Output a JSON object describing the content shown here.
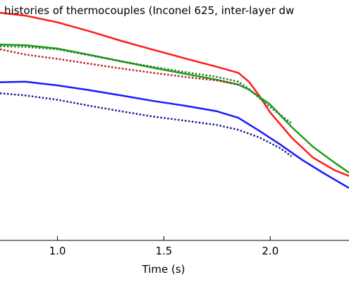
{
  "chart_data": {
    "type": "line",
    "title": "histories of thermocouples (Inconel 625, inter-layer dw",
    "xlabel": "Time (s)",
    "ylabel": "",
    "xlim": [
      0.73,
      2.37
    ],
    "ylim": [
      0,
      1
    ],
    "x_ticks": [
      {
        "value": 1.0,
        "label": "1.0"
      },
      {
        "value": 1.5,
        "label": "1.5"
      },
      {
        "value": 2.0,
        "label": "2.0"
      }
    ],
    "grid": false,
    "legend": "none",
    "series": [
      {
        "color": "#ff1a1a",
        "style": "solid",
        "x": [
          0.73,
          0.85,
          1.0,
          1.15,
          1.3,
          1.45,
          1.6,
          1.75,
          1.85,
          1.9,
          1.95,
          2.0,
          2.1,
          2.2,
          2.3,
          2.37
        ],
        "y": [
          0.947,
          0.935,
          0.907,
          0.87,
          0.83,
          0.793,
          0.757,
          0.722,
          0.697,
          0.66,
          0.6,
          0.532,
          0.428,
          0.345,
          0.293,
          0.268
        ]
      },
      {
        "color": "#1aa01a",
        "style": "solid",
        "x": [
          0.73,
          0.85,
          1.0,
          1.15,
          1.3,
          1.45,
          1.6,
          1.75,
          1.85,
          1.9,
          2.0,
          2.1,
          2.2,
          2.3,
          2.37
        ],
        "y": [
          0.815,
          0.812,
          0.798,
          0.772,
          0.745,
          0.718,
          0.693,
          0.668,
          0.648,
          0.627,
          0.565,
          0.472,
          0.39,
          0.325,
          0.282
        ]
      },
      {
        "color": "#2a7a2a",
        "style": "dotted",
        "x": [
          0.73,
          0.85,
          1.0,
          1.15,
          1.3,
          1.45,
          1.6,
          1.75,
          1.85,
          1.9,
          1.97,
          2.05,
          2.1
        ],
        "y": [
          0.808,
          0.805,
          0.795,
          0.77,
          0.745,
          0.722,
          0.7,
          0.68,
          0.66,
          0.63,
          0.575,
          0.52,
          0.488
        ]
      },
      {
        "color": "#b22222",
        "style": "dotted",
        "x": [
          0.73,
          0.85,
          1.0,
          1.15,
          1.3,
          1.45,
          1.6,
          1.75,
          1.85
        ],
        "y": [
          0.795,
          0.773,
          0.755,
          0.735,
          0.715,
          0.697,
          0.68,
          0.665,
          0.648
        ]
      },
      {
        "color": "#1a1aff",
        "style": "solid",
        "x": [
          0.73,
          0.85,
          1.0,
          1.15,
          1.3,
          1.45,
          1.6,
          1.75,
          1.85,
          1.95,
          2.05,
          2.15,
          2.25,
          2.37
        ],
        "y": [
          0.658,
          0.66,
          0.645,
          0.625,
          0.603,
          0.58,
          0.56,
          0.537,
          0.51,
          0.455,
          0.397,
          0.335,
          0.28,
          0.218
        ]
      },
      {
        "color": "#1a1a99",
        "style": "dotted",
        "x": [
          0.73,
          0.85,
          1.0,
          1.15,
          1.3,
          1.45,
          1.6,
          1.75,
          1.85,
          1.95,
          2.05,
          2.1
        ],
        "y": [
          0.612,
          0.603,
          0.585,
          0.56,
          0.537,
          0.515,
          0.498,
          0.48,
          0.46,
          0.428,
          0.382,
          0.35
        ]
      }
    ]
  }
}
